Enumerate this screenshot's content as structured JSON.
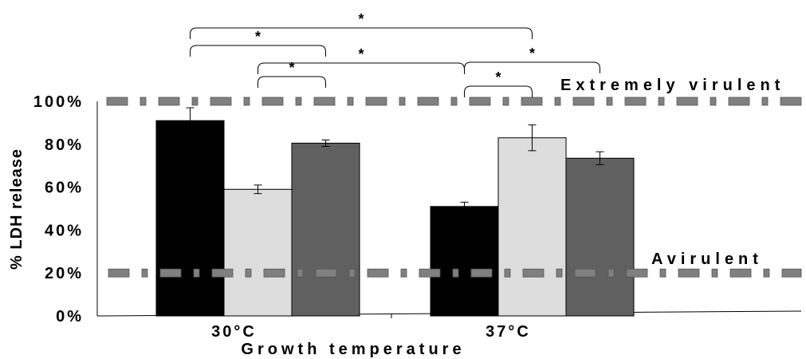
{
  "chart_data": {
    "type": "bar",
    "title": "",
    "xlabel": "Growth temperature",
    "ylabel": "% LDH release",
    "ylim": [
      0,
      100
    ],
    "yticks": [
      "0%",
      "20%",
      "40%",
      "60%",
      "80%",
      "100%"
    ],
    "categories": [
      "30°C",
      "37°C"
    ],
    "series": [
      {
        "color": "#000000",
        "values": [
          91,
          51
        ],
        "errors": [
          6,
          2
        ]
      },
      {
        "color": "#dddddd",
        "values": [
          59,
          83
        ],
        "errors": [
          2,
          6
        ]
      },
      {
        "color": "#606060",
        "values": [
          80.5,
          73.5
        ],
        "errors": [
          1.5,
          3
        ]
      }
    ],
    "reference_lines": [
      {
        "value": 100,
        "label": "Extremely virulent"
      },
      {
        "value": 20,
        "label": "Avirulent"
      }
    ],
    "significance": [
      {
        "from": [
          0,
          0
        ],
        "to": [
          1,
          1
        ],
        "label": "*"
      },
      {
        "from": [
          0,
          0
        ],
        "to": [
          0,
          2
        ],
        "label": "*"
      },
      {
        "from": [
          0,
          1
        ],
        "to": [
          0,
          2
        ],
        "label": "*"
      },
      {
        "from": [
          0,
          1
        ],
        "to": [
          1,
          0
        ],
        "label": "*"
      },
      {
        "from": [
          1,
          0
        ],
        "to": [
          1,
          2
        ],
        "label": "*"
      },
      {
        "from": [
          1,
          0
        ],
        "to": [
          1,
          1
        ],
        "label": "*"
      }
    ],
    "grid": false,
    "legend": "none"
  }
}
